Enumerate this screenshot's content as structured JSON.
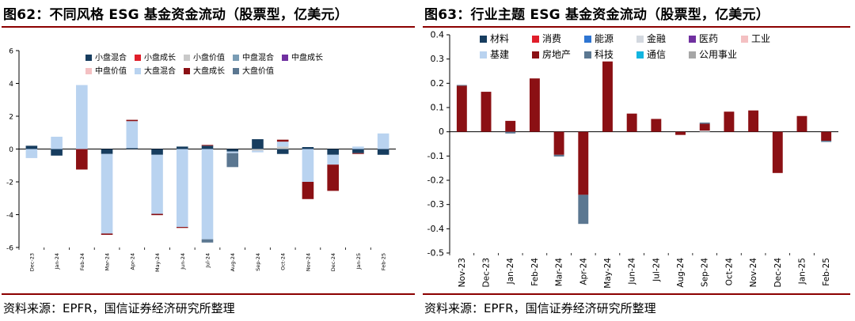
{
  "colors": {
    "rule": "#8b0000",
    "小盘混合": "#173d5f",
    "小盘成长": "#e01e2a",
    "小盘价值": "#c9c9c9",
    "中盘混合": "#7a9db5",
    "中盘成长": "#7030a0",
    "中盘价值": "#f4c0c2",
    "大盘混合": "#b9d3f0",
    "大盘成长": "#8b1014",
    "大盘价值": "#5b7791",
    "材料": "#173d5f",
    "消费": "#e01e2a",
    "能源": "#2e75d2",
    "金融": "#d3d8df",
    "医药": "#7030a0",
    "工业": "#f4c0c2",
    "基建": "#b9d3f0",
    "房地产": "#8b1014",
    "科技": "#5b7791",
    "通信": "#12b5e0",
    "公用事业": "#a6a6a6"
  },
  "left_panel": {
    "title": "图62：不同风格 ESG 基金资金流动（股票型，亿美元）",
    "source": "资料来源：EPFR，国信证券经济研究所整理"
  },
  "right_panel": {
    "title": "图63：行业主题 ESG 基金资金流动（股票型，亿美元）",
    "source": "资料来源：EPFR，国信证券经济研究所整理"
  },
  "chart_data": [
    {
      "type": "bar",
      "stacked": true,
      "title": "图62：不同风格 ESG 基金资金流动（股票型，亿美元）",
      "xlabel": "",
      "ylabel": "",
      "ylim": [
        -6,
        6
      ],
      "yticks": [
        -6,
        -4,
        -2,
        0,
        2,
        4,
        6
      ],
      "categories": [
        "Dec-23",
        "Jan-24",
        "Feb-24",
        "Mar-24",
        "Apr-24",
        "May-24",
        "Jun-24",
        "Jul-24",
        "Aug-24",
        "Sep-24",
        "Oct-24",
        "Nov-24",
        "Dec-24",
        "Jan-25",
        "Feb-25"
      ],
      "legend_position": "top-right",
      "series": [
        {
          "name": "小盘混合",
          "values": [
            0.2,
            -0.4,
            0,
            -0.3,
            0.05,
            -0.35,
            0.15,
            0.2,
            -0.15,
            0.6,
            -0.3,
            0.12,
            -0.35,
            -0.25,
            -0.35
          ]
        },
        {
          "name": "小盘成长",
          "values": [
            0,
            0,
            0,
            0,
            0,
            0,
            0,
            0,
            0,
            0,
            0,
            0,
            0,
            0,
            0
          ]
        },
        {
          "name": "小盘价值",
          "values": [
            0,
            0,
            0,
            0,
            0,
            0,
            0,
            0,
            0,
            -0.1,
            0.15,
            0,
            0,
            0,
            0
          ]
        },
        {
          "name": "中盘混合",
          "values": [
            0,
            0,
            0,
            0,
            0,
            0,
            0,
            0,
            0,
            0,
            0,
            0,
            0,
            0,
            0
          ]
        },
        {
          "name": "中盘成长",
          "values": [
            0,
            0,
            0,
            0,
            0,
            0,
            0,
            0,
            0,
            0,
            0,
            0,
            0,
            0,
            0
          ]
        },
        {
          "name": "中盘价值",
          "values": [
            0,
            0,
            0,
            0,
            0,
            0,
            0,
            0,
            0,
            0,
            0,
            0,
            0,
            0,
            0
          ]
        },
        {
          "name": "大盘混合",
          "values": [
            -0.55,
            0.75,
            3.9,
            -4.85,
            1.65,
            -3.6,
            -4.75,
            -5.5,
            -0.1,
            -0.1,
            0.3,
            -2.0,
            -0.6,
            0.15,
            0.95
          ]
        },
        {
          "name": "大盘成长",
          "values": [
            0,
            0,
            -1.25,
            -0.08,
            0.08,
            -0.08,
            -0.06,
            0.05,
            0,
            0,
            0.12,
            -1.05,
            -1.6,
            -0.05,
            0
          ]
        },
        {
          "name": "大盘价值",
          "values": [
            0,
            0,
            0,
            0,
            0,
            0,
            0,
            -0.2,
            -0.85,
            0,
            0,
            0,
            0,
            0,
            0
          ]
        }
      ]
    },
    {
      "type": "bar",
      "stacked": true,
      "title": "图63：行业主题 ESG 基金资金流动（股票型，亿美元）",
      "xlabel": "",
      "ylabel": "",
      "ylim": [
        -0.5,
        0.4
      ],
      "yticks": [
        -0.5,
        -0.4,
        -0.3,
        -0.2,
        -0.1,
        0,
        0.1,
        0.2,
        0.3,
        0.4
      ],
      "categories": [
        "Nov-23",
        "Dec-23",
        "Jan-24",
        "Feb-24",
        "Mar-24",
        "Apr-24",
        "May-24",
        "Jun-24",
        "Jul-24",
        "Aug-24",
        "Sep-24",
        "Oct-24",
        "Nov-24",
        "Dec-24",
        "Jan-25",
        "Feb-25"
      ],
      "legend_position": "top-left",
      "series": [
        {
          "name": "材料",
          "values": [
            0,
            0,
            0,
            0,
            0,
            0,
            0,
            0,
            0,
            0,
            0,
            0,
            0,
            0,
            0,
            0
          ]
        },
        {
          "name": "消费",
          "values": [
            0,
            0,
            0,
            0,
            0,
            0,
            0,
            0,
            0,
            0,
            0,
            0,
            0,
            0,
            0,
            0
          ]
        },
        {
          "name": "能源",
          "values": [
            0,
            0,
            0,
            0,
            0,
            0,
            0,
            0,
            0,
            0,
            0,
            0,
            0,
            0,
            0,
            0
          ]
        },
        {
          "name": "金融",
          "values": [
            0,
            0,
            0,
            0,
            0,
            0,
            0,
            0,
            0,
            0,
            0.005,
            0,
            0,
            0,
            0,
            0
          ]
        },
        {
          "name": "医药",
          "values": [
            0,
            0,
            0,
            0,
            0,
            0,
            0,
            0,
            0,
            0,
            0,
            0,
            0,
            0,
            0,
            0
          ]
        },
        {
          "name": "工业",
          "values": [
            0,
            0,
            0,
            0,
            0,
            0,
            0,
            0,
            0,
            0,
            0,
            0,
            0,
            0,
            0,
            0
          ]
        },
        {
          "name": "基建",
          "values": [
            0,
            0,
            0,
            0,
            0,
            0,
            0,
            0,
            0,
            0,
            0,
            0,
            0,
            0,
            0,
            0
          ]
        },
        {
          "name": "房地产",
          "values": [
            0.19,
            0.165,
            0.045,
            0.22,
            -0.095,
            -0.26,
            0.29,
            0.075,
            0.053,
            -0.013,
            0.028,
            0.083,
            0.088,
            -0.17,
            0.065,
            -0.037
          ]
        },
        {
          "name": "科技",
          "values": [
            0.003,
            0,
            -0.007,
            0,
            -0.007,
            -0.12,
            0,
            0,
            0,
            0,
            0.005,
            0,
            0,
            0,
            0,
            -0.005
          ]
        },
        {
          "name": "通信",
          "values": [
            0,
            0,
            0,
            0,
            0,
            0,
            0,
            0,
            0,
            0,
            0,
            0,
            0,
            0,
            0,
            0
          ]
        },
        {
          "name": "公用事业",
          "values": [
            0,
            0,
            0,
            0,
            0,
            0,
            0,
            0,
            0,
            0,
            0,
            0,
            0,
            0,
            0,
            0
          ]
        }
      ]
    }
  ]
}
